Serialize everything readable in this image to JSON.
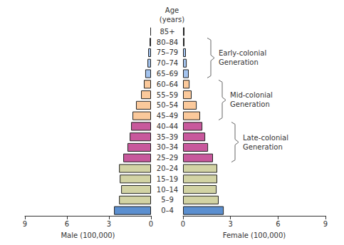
{
  "chart_data": {
    "type": "population_pyramid",
    "orientation": "horizontal",
    "title": "Age\n(years)",
    "categories": [
      "0–4",
      "5–9",
      "10–14",
      "15–19",
      "20–24",
      "25–29",
      "30–34",
      "35–39",
      "40–44",
      "45–49",
      "50–54",
      "55–59",
      "60–64",
      "65–69",
      "70–74",
      "75–79",
      "80–84",
      "85+"
    ],
    "series": [
      {
        "name": "Male (100,000)",
        "values": [
          2.64,
          2.28,
          2.13,
          2.23,
          2.28,
          1.98,
          1.68,
          1.52,
          1.42,
          1.32,
          1.07,
          0.71,
          0.51,
          0.41,
          0.25,
          0.2,
          0.1,
          0.05
        ],
        "colors": [
          "#5b8fd0",
          "#d2d3a4",
          "#d2d3a4",
          "#d2d3a4",
          "#d2d3a4",
          "#c8589c",
          "#c8589c",
          "#c8589c",
          "#c8589c",
          "#fbc99b",
          "#fbc99b",
          "#fbc99b",
          "#fbc99b",
          "#a3c3ee",
          "#a3c3ee",
          "#a3c3ee",
          "#a3c3ee",
          "#a3c3ee"
        ]
      },
      {
        "name": "Female (100,000)",
        "values": [
          2.57,
          2.25,
          2.12,
          2.16,
          2.16,
          1.89,
          1.58,
          1.4,
          1.22,
          1.08,
          0.86,
          0.54,
          0.41,
          0.36,
          0.23,
          0.18,
          0.09,
          0.09
        ],
        "colors": [
          "#5b8fd0",
          "#d2d3a4",
          "#d2d3a4",
          "#d2d3a4",
          "#d2d3a4",
          "#c8589c",
          "#c8589c",
          "#c8589c",
          "#c8589c",
          "#fbc99b",
          "#fbc99b",
          "#fbc99b",
          "#fbc99b",
          "#a3c3ee",
          "#a3c3ee",
          "#a3c3ee",
          "#a3c3ee",
          "#a3c3ee"
        ]
      }
    ],
    "xlim": [
      0,
      9
    ],
    "xticks": [
      0,
      3,
      6,
      9
    ],
    "grid": false,
    "annotations": [
      {
        "text": "Early-colonial\nGeneration",
        "categories": [
          "65–69",
          "80–84"
        ]
      },
      {
        "text": "Mid-colonial\nGeneration",
        "categories": [
          "45–49",
          "60–64"
        ]
      },
      {
        "text": "Late-colonial\nGeneration",
        "categories": [
          "25–29",
          "40–44"
        ]
      }
    ]
  }
}
